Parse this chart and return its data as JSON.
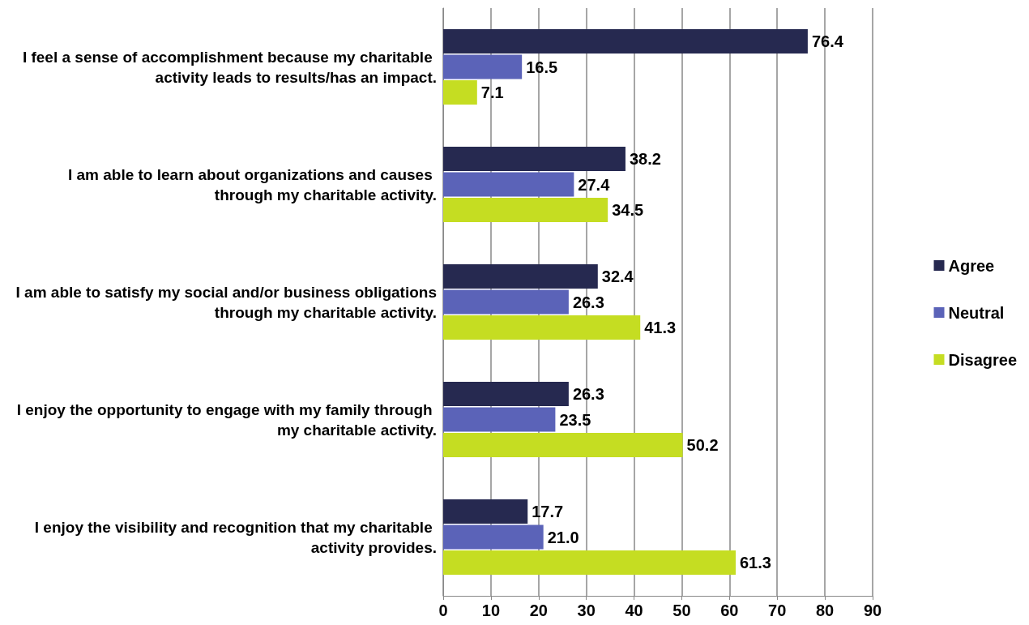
{
  "chart_data": {
    "type": "bar",
    "orientation": "horizontal",
    "categories": [
      "I feel a sense of accomplishment because my charitable activity leads to results/has an impact.",
      "I am able to learn about organizations and causes through my charitable activity.",
      "I am able to satisfy my social and/or business obligations through my charitable activity.",
      "I enjoy the opportunity to engage with my family through my charitable activity.",
      "I enjoy the visibility and recognition that my charitable activity provides."
    ],
    "series": [
      {
        "name": "Agree",
        "color": "#262950",
        "values": [
          76.4,
          38.2,
          32.4,
          26.3,
          17.7
        ],
        "value_labels": [
          "76.4",
          "38.2",
          "32.4",
          "26.3",
          "17.7"
        ]
      },
      {
        "name": "Neutral",
        "color": "#5b63b8",
        "values": [
          16.5,
          27.4,
          26.3,
          23.5,
          21.0
        ],
        "value_labels": [
          "16.5",
          "27.4",
          "26.3",
          "23.5",
          "21.0"
        ]
      },
      {
        "name": "Disagree",
        "color": "#c5dd22",
        "values": [
          7.1,
          34.5,
          41.3,
          50.2,
          61.3
        ],
        "value_labels": [
          "7.1",
          "34.5",
          "41.3",
          "50.2",
          "61.3"
        ]
      }
    ],
    "xlim": [
      0,
      90
    ],
    "xticks": [
      0,
      10,
      20,
      30,
      40,
      50,
      60,
      70,
      80,
      90
    ],
    "grid": "x",
    "legend": "right"
  }
}
